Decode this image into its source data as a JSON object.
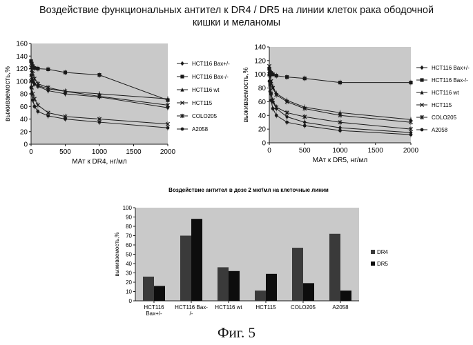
{
  "figure": {
    "title_line1": "Воздействие функциональных антител к DR4 / DR5 на линии клеток рака ободочной",
    "title_line2": "кишки и меланомы",
    "caption": "Фиг. 5"
  },
  "colors": {
    "plot_bg": "#c9c9c9",
    "line": "#1a1a1a",
    "dr4_bar": "#3a3a3a",
    "dr5_bar": "#0d0d0d"
  },
  "chart_data": [
    {
      "type": "line",
      "title": "",
      "xlabel": "МАт к DR4, нг/мл",
      "ylabel": "выживаемость,%",
      "xlim": [
        0,
        2000
      ],
      "ylim": [
        0,
        160
      ],
      "xticks": [
        0,
        500,
        1000,
        1500,
        2000
      ],
      "yticks": [
        0,
        20,
        40,
        60,
        80,
        100,
        120,
        140,
        160
      ],
      "legend_position": "right",
      "x": [
        0,
        10,
        25,
        50,
        100,
        250,
        500,
        1000,
        2000
      ],
      "series": [
        {
          "name": "HCT116 Bax+/-",
          "marker": "diamond",
          "values": [
            110,
            104,
            100,
            96,
            92,
            85,
            80,
            75,
            58
          ]
        },
        {
          "name": "HCT116 Bax-/-",
          "marker": "square",
          "values": [
            132,
            128,
            124,
            121,
            120,
            119,
            114,
            110,
            70
          ]
        },
        {
          "name": "HCT116 wt",
          "marker": "triangle",
          "values": [
            110,
            106,
            100,
            96,
            93,
            88,
            84,
            80,
            72
          ]
        },
        {
          "name": "HCT115",
          "marker": "x",
          "values": [
            100,
            90,
            80,
            72,
            62,
            50,
            44,
            40,
            32
          ]
        },
        {
          "name": "COLO205",
          "marker": "star",
          "values": [
            122,
            118,
            112,
            104,
            96,
            90,
            84,
            76,
            62
          ]
        },
        {
          "name": "A2058",
          "marker": "circle",
          "values": [
            90,
            80,
            70,
            60,
            52,
            45,
            40,
            35,
            26
          ]
        }
      ]
    },
    {
      "type": "line",
      "title": "",
      "xlabel": "МАт к DR5, нг/мл",
      "ylabel": "выживаемость,%",
      "xlim": [
        0,
        2000
      ],
      "ylim": [
        0,
        140
      ],
      "xticks": [
        0,
        500,
        1000,
        1500,
        2000
      ],
      "yticks": [
        0,
        20,
        40,
        60,
        80,
        100,
        120,
        140
      ],
      "legend_position": "right",
      "x": [
        0,
        10,
        25,
        50,
        100,
        250,
        500,
        1000,
        2000
      ],
      "series": [
        {
          "name": "HCT116 Bax+/-",
          "marker": "diamond",
          "values": [
            100,
            85,
            72,
            60,
            50,
            38,
            30,
            22,
            15
          ]
        },
        {
          "name": "HCT116 Bax-/-",
          "marker": "square",
          "values": [
            108,
            104,
            102,
            100,
            98,
            96,
            94,
            88,
            88
          ]
        },
        {
          "name": "HCT116 wt",
          "marker": "triangle",
          "values": [
            105,
            98,
            90,
            82,
            72,
            62,
            52,
            44,
            34
          ]
        },
        {
          "name": "HCT115",
          "marker": "x",
          "values": [
            112,
            100,
            90,
            80,
            70,
            60,
            50,
            40,
            30
          ]
        },
        {
          "name": "COLO205",
          "marker": "star",
          "values": [
            100,
            85,
            72,
            62,
            52,
            44,
            38,
            30,
            20
          ]
        },
        {
          "name": "A2058",
          "marker": "circle",
          "values": [
            90,
            75,
            62,
            50,
            40,
            30,
            25,
            18,
            12
          ]
        }
      ]
    },
    {
      "type": "bar",
      "title": "Воздействие антител в дозе 2 мкг/мл на клеточные линии",
      "xlabel": "",
      "ylabel": "выживаемость,%",
      "ylim": [
        0,
        100
      ],
      "yticks": [
        0,
        10,
        20,
        30,
        40,
        50,
        60,
        70,
        80,
        90,
        100
      ],
      "legend_position": "right",
      "categories": [
        "HCT116 Bax+/-",
        "HCT116 Bax-/-",
        "HCT116 wt",
        "HCT115",
        "COLO205",
        "A2058"
      ],
      "category_lines": [
        [
          "HCT116",
          "Bax+/-"
        ],
        [
          "HCT116 Bax-",
          "/-"
        ],
        [
          "HCT116 wt"
        ],
        [
          "HCT115"
        ],
        [
          "COLO205"
        ],
        [
          "A2058"
        ]
      ],
      "series": [
        {
          "name": "DR4",
          "values": [
            26,
            70,
            36,
            11,
            57,
            72
          ]
        },
        {
          "name": "DR5",
          "values": [
            16,
            88,
            32,
            29,
            19,
            11
          ]
        }
      ]
    }
  ]
}
